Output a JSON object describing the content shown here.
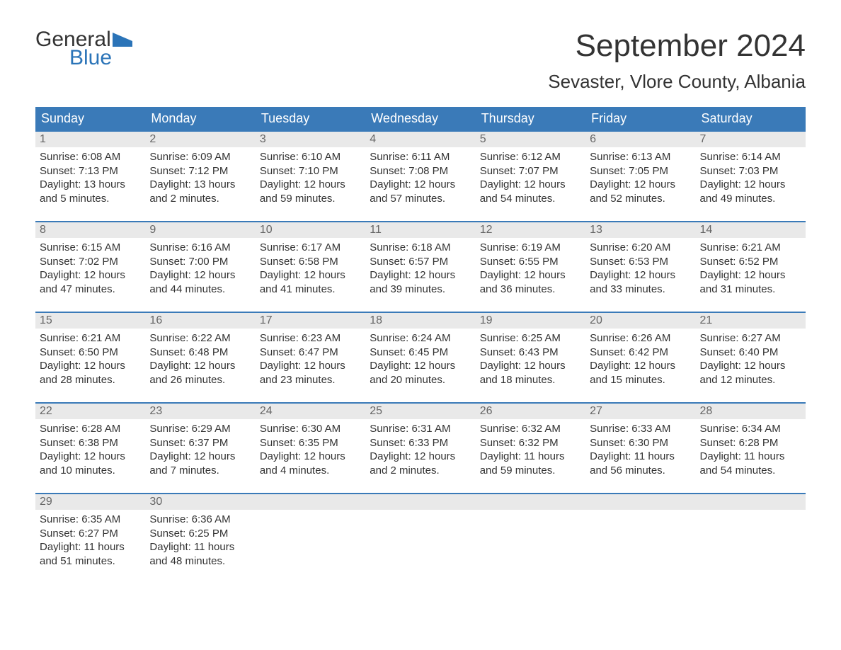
{
  "logo": {
    "line1": "General",
    "line2": "Blue",
    "flag_color": "#2b74b8"
  },
  "title": "September 2024",
  "location": "Sevaster, Vlore County, Albania",
  "colors": {
    "header_bg": "#3a7ab8",
    "header_text": "#ffffff",
    "daynum_bg": "#e9e9e9",
    "daynum_border": "#3a7ab8",
    "body_text": "#333333",
    "daynum_text": "#666666",
    "logo_blue": "#2b74b8",
    "background": "#ffffff"
  },
  "typography": {
    "title_fontsize": 44,
    "location_fontsize": 26,
    "dayheader_fontsize": 18,
    "daynum_fontsize": 16,
    "content_fontsize": 15,
    "logo_fontsize": 30
  },
  "day_headers": [
    "Sunday",
    "Monday",
    "Tuesday",
    "Wednesday",
    "Thursday",
    "Friday",
    "Saturday"
  ],
  "weeks": [
    [
      {
        "n": "1",
        "sunrise": "Sunrise: 6:08 AM",
        "sunset": "Sunset: 7:13 PM",
        "daylight": "Daylight: 13 hours and 5 minutes."
      },
      {
        "n": "2",
        "sunrise": "Sunrise: 6:09 AM",
        "sunset": "Sunset: 7:12 PM",
        "daylight": "Daylight: 13 hours and 2 minutes."
      },
      {
        "n": "3",
        "sunrise": "Sunrise: 6:10 AM",
        "sunset": "Sunset: 7:10 PM",
        "daylight": "Daylight: 12 hours and 59 minutes."
      },
      {
        "n": "4",
        "sunrise": "Sunrise: 6:11 AM",
        "sunset": "Sunset: 7:08 PM",
        "daylight": "Daylight: 12 hours and 57 minutes."
      },
      {
        "n": "5",
        "sunrise": "Sunrise: 6:12 AM",
        "sunset": "Sunset: 7:07 PM",
        "daylight": "Daylight: 12 hours and 54 minutes."
      },
      {
        "n": "6",
        "sunrise": "Sunrise: 6:13 AM",
        "sunset": "Sunset: 7:05 PM",
        "daylight": "Daylight: 12 hours and 52 minutes."
      },
      {
        "n": "7",
        "sunrise": "Sunrise: 6:14 AM",
        "sunset": "Sunset: 7:03 PM",
        "daylight": "Daylight: 12 hours and 49 minutes."
      }
    ],
    [
      {
        "n": "8",
        "sunrise": "Sunrise: 6:15 AM",
        "sunset": "Sunset: 7:02 PM",
        "daylight": "Daylight: 12 hours and 47 minutes."
      },
      {
        "n": "9",
        "sunrise": "Sunrise: 6:16 AM",
        "sunset": "Sunset: 7:00 PM",
        "daylight": "Daylight: 12 hours and 44 minutes."
      },
      {
        "n": "10",
        "sunrise": "Sunrise: 6:17 AM",
        "sunset": "Sunset: 6:58 PM",
        "daylight": "Daylight: 12 hours and 41 minutes."
      },
      {
        "n": "11",
        "sunrise": "Sunrise: 6:18 AM",
        "sunset": "Sunset: 6:57 PM",
        "daylight": "Daylight: 12 hours and 39 minutes."
      },
      {
        "n": "12",
        "sunrise": "Sunrise: 6:19 AM",
        "sunset": "Sunset: 6:55 PM",
        "daylight": "Daylight: 12 hours and 36 minutes."
      },
      {
        "n": "13",
        "sunrise": "Sunrise: 6:20 AM",
        "sunset": "Sunset: 6:53 PM",
        "daylight": "Daylight: 12 hours and 33 minutes."
      },
      {
        "n": "14",
        "sunrise": "Sunrise: 6:21 AM",
        "sunset": "Sunset: 6:52 PM",
        "daylight": "Daylight: 12 hours and 31 minutes."
      }
    ],
    [
      {
        "n": "15",
        "sunrise": "Sunrise: 6:21 AM",
        "sunset": "Sunset: 6:50 PM",
        "daylight": "Daylight: 12 hours and 28 minutes."
      },
      {
        "n": "16",
        "sunrise": "Sunrise: 6:22 AM",
        "sunset": "Sunset: 6:48 PM",
        "daylight": "Daylight: 12 hours and 26 minutes."
      },
      {
        "n": "17",
        "sunrise": "Sunrise: 6:23 AM",
        "sunset": "Sunset: 6:47 PM",
        "daylight": "Daylight: 12 hours and 23 minutes."
      },
      {
        "n": "18",
        "sunrise": "Sunrise: 6:24 AM",
        "sunset": "Sunset: 6:45 PM",
        "daylight": "Daylight: 12 hours and 20 minutes."
      },
      {
        "n": "19",
        "sunrise": "Sunrise: 6:25 AM",
        "sunset": "Sunset: 6:43 PM",
        "daylight": "Daylight: 12 hours and 18 minutes."
      },
      {
        "n": "20",
        "sunrise": "Sunrise: 6:26 AM",
        "sunset": "Sunset: 6:42 PM",
        "daylight": "Daylight: 12 hours and 15 minutes."
      },
      {
        "n": "21",
        "sunrise": "Sunrise: 6:27 AM",
        "sunset": "Sunset: 6:40 PM",
        "daylight": "Daylight: 12 hours and 12 minutes."
      }
    ],
    [
      {
        "n": "22",
        "sunrise": "Sunrise: 6:28 AM",
        "sunset": "Sunset: 6:38 PM",
        "daylight": "Daylight: 12 hours and 10 minutes."
      },
      {
        "n": "23",
        "sunrise": "Sunrise: 6:29 AM",
        "sunset": "Sunset: 6:37 PM",
        "daylight": "Daylight: 12 hours and 7 minutes."
      },
      {
        "n": "24",
        "sunrise": "Sunrise: 6:30 AM",
        "sunset": "Sunset: 6:35 PM",
        "daylight": "Daylight: 12 hours and 4 minutes."
      },
      {
        "n": "25",
        "sunrise": "Sunrise: 6:31 AM",
        "sunset": "Sunset: 6:33 PM",
        "daylight": "Daylight: 12 hours and 2 minutes."
      },
      {
        "n": "26",
        "sunrise": "Sunrise: 6:32 AM",
        "sunset": "Sunset: 6:32 PM",
        "daylight": "Daylight: 11 hours and 59 minutes."
      },
      {
        "n": "27",
        "sunrise": "Sunrise: 6:33 AM",
        "sunset": "Sunset: 6:30 PM",
        "daylight": "Daylight: 11 hours and 56 minutes."
      },
      {
        "n": "28",
        "sunrise": "Sunrise: 6:34 AM",
        "sunset": "Sunset: 6:28 PM",
        "daylight": "Daylight: 11 hours and 54 minutes."
      }
    ],
    [
      {
        "n": "29",
        "sunrise": "Sunrise: 6:35 AM",
        "sunset": "Sunset: 6:27 PM",
        "daylight": "Daylight: 11 hours and 51 minutes."
      },
      {
        "n": "30",
        "sunrise": "Sunrise: 6:36 AM",
        "sunset": "Sunset: 6:25 PM",
        "daylight": "Daylight: 11 hours and 48 minutes."
      },
      null,
      null,
      null,
      null,
      null
    ]
  ]
}
